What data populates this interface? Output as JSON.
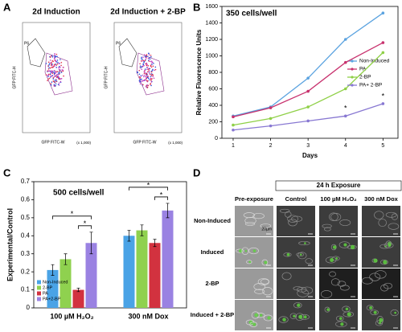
{
  "panel_labels": [
    "A",
    "B",
    "C",
    "D"
  ],
  "panel_a": {
    "plots": [
      {
        "title": "2d Induction",
        "x_label": "GFP FITC-W",
        "y_label": "GFP FITC-H",
        "x_unit": "(x 1,000)",
        "gate": "P6"
      },
      {
        "title": "2d Induction + 2-BP",
        "x_label": "GFP FITC-W",
        "y_label": "GFP FITC-H",
        "x_unit": "(x 1,000)",
        "gate": "P6"
      }
    ]
  },
  "chart_data": [
    {
      "type": "line",
      "title": "350 cells/well",
      "x_label": "Days",
      "y_label": "Relative Fluorescence Units",
      "x": [
        1,
        2,
        3,
        4,
        5
      ],
      "xlim": [
        0.7,
        5.4
      ],
      "xticks": [
        1,
        2,
        3,
        4,
        5
      ],
      "ylim": [
        0,
        1600
      ],
      "yticks": [
        0,
        200,
        400,
        600,
        800,
        1000,
        1200,
        1400,
        1600
      ],
      "legend": "right",
      "series": [
        {
          "name": "Non-Induced",
          "color": "#5ba3e0",
          "values": [
            270,
            380,
            730,
            1200,
            1520
          ]
        },
        {
          "name": "PA",
          "color": "#c8326e",
          "values": [
            260,
            370,
            570,
            920,
            1160
          ]
        },
        {
          "name": "2-BP",
          "color": "#8fd047",
          "values": [
            160,
            240,
            380,
            600,
            1040
          ]
        },
        {
          "name": "PA+ 2-BP",
          "color": "#8878d2",
          "values": [
            100,
            150,
            210,
            270,
            420
          ]
        }
      ],
      "annotations": [
        "*",
        "*"
      ]
    },
    {
      "type": "bar",
      "title": "500 cells/well",
      "y_label": "Experimental/Control",
      "categories": [
        "100 µM H₂O₂",
        "300 nM Dox"
      ],
      "ylim": [
        0,
        0.7
      ],
      "yticks": [
        0,
        0.1,
        0.2,
        0.3,
        0.4,
        0.5,
        0.6,
        0.7
      ],
      "legend": "lower left",
      "series": [
        {
          "name": "Non-Induced",
          "color": "#4aa3e6",
          "values": [
            0.21,
            0.4
          ],
          "errors": [
            0.03,
            0.03
          ]
        },
        {
          "name": "2-BP",
          "color": "#8fd14f",
          "values": [
            0.27,
            0.43
          ],
          "errors": [
            0.03,
            0.03
          ]
        },
        {
          "name": "PA",
          "color": "#d2323f",
          "values": [
            0.1,
            0.36
          ],
          "errors": [
            0.01,
            0.02
          ]
        },
        {
          "name": "PA+2-BP",
          "color": "#9a82e2",
          "values": [
            0.36,
            0.54
          ],
          "errors": [
            0.06,
            0.04
          ]
        }
      ],
      "annotations": [
        "*",
        "*",
        "*",
        "*"
      ]
    }
  ],
  "panel_d": {
    "group_header": "24 h Exposure",
    "columns": [
      "Pre-exposure",
      "Control",
      "100 µM H₂O₂",
      "300 nM Dox"
    ],
    "rows": [
      "Non-Induced",
      "Induced",
      "2-BP",
      "Induced + 2-BP"
    ],
    "scale_bar": "20µm"
  }
}
